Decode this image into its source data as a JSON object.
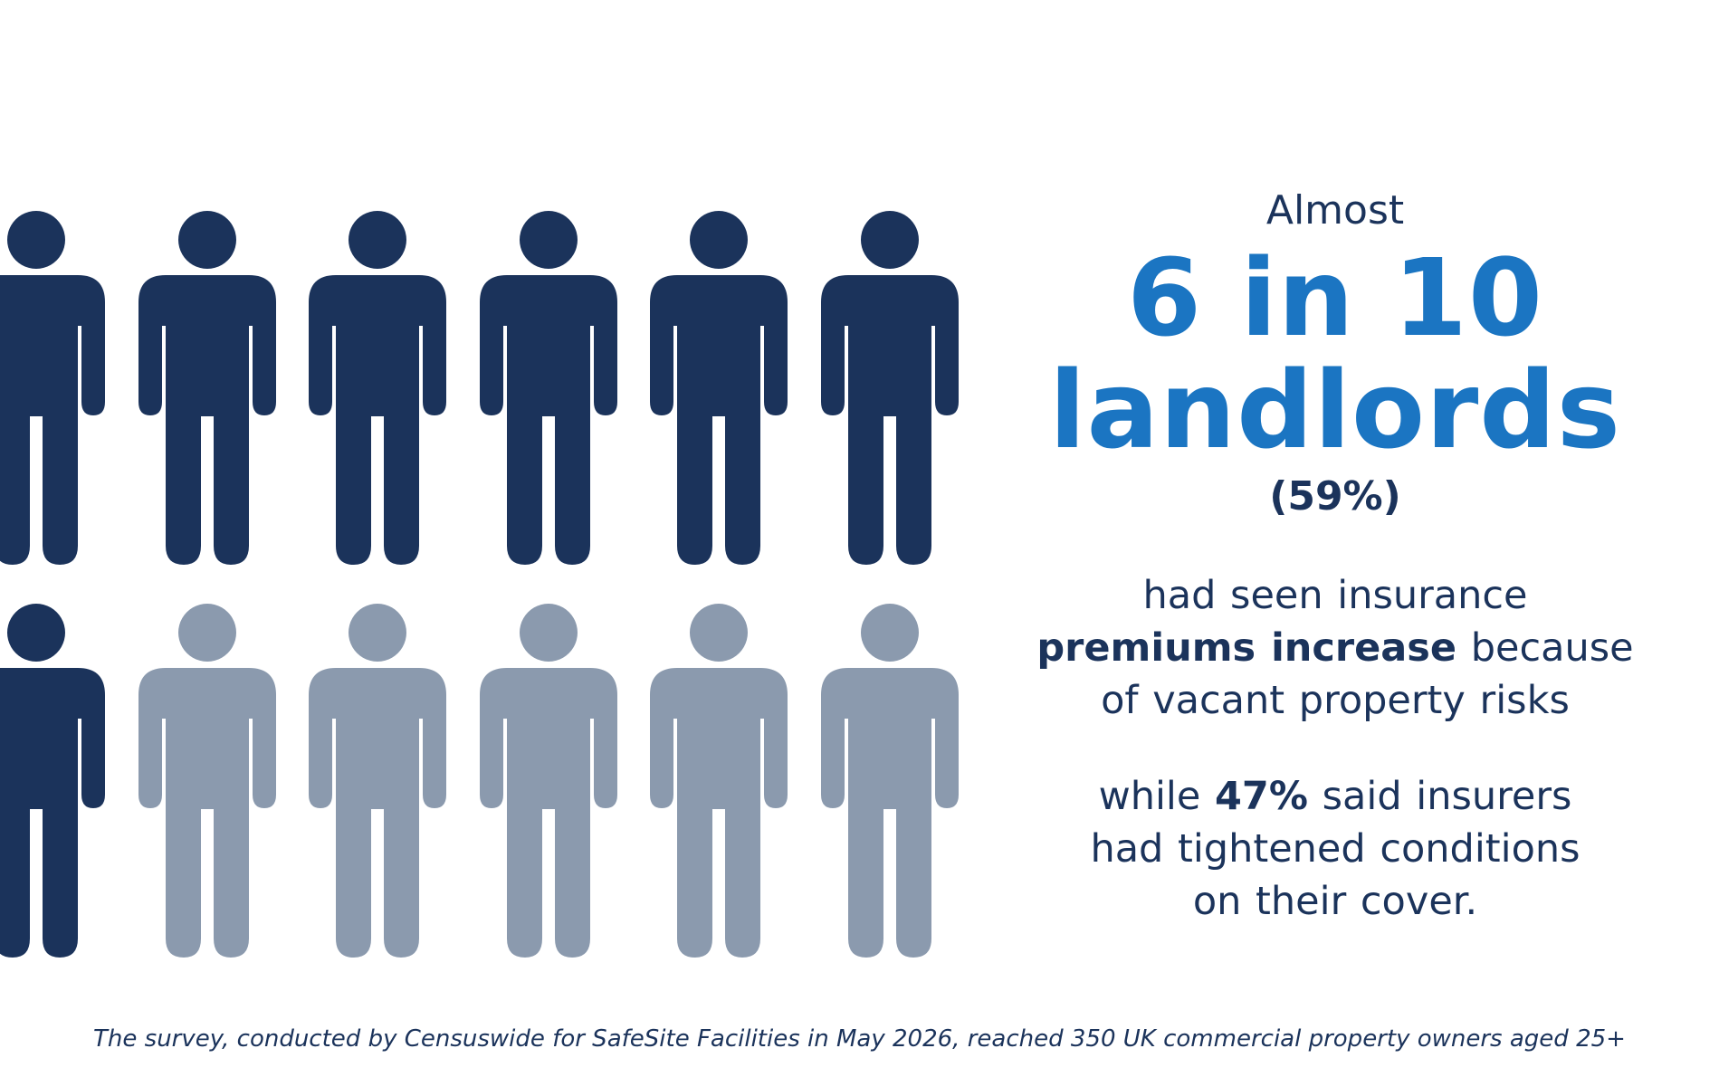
{
  "colors": {
    "filled_person": "#1b335b",
    "empty_person": "#8b9aae",
    "accent": "#1b75c2",
    "text": "#1b335b"
  },
  "pictogram": {
    "icon": "person-icon",
    "total": 12,
    "filled": 7,
    "rows": 2,
    "columns": 6
  },
  "stat": {
    "intro": "Almost",
    "headline_line1": "6 in 10",
    "headline_line2": "landlords",
    "percent": "(59%)",
    "line1": "had seen insurance",
    "line2_bold": "premiums increase",
    "line2_rest": " because",
    "line3": "of vacant property risks",
    "line4_start": "while ",
    "line4_bold": "47%",
    "line4_rest": " said insurers",
    "line5": "had tightened conditions",
    "line6": "on their cover."
  },
  "footnote": "The survey, conducted by Censuswide for SafeSite Facilities in May 2026, reached 350 UK commercial property owners aged 25+"
}
